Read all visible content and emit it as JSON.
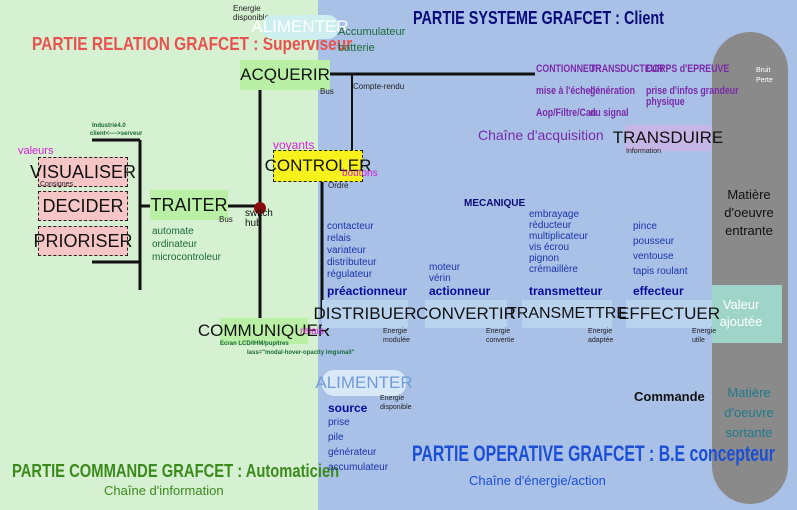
{
  "header": {
    "systeme_title": "PARTIE SYSTEME GRAFCET  : Client",
    "relation_title": "PARTIE RELATION  GRAFCET  : Superviseur",
    "commande_title": "PARTIE COMMANDE GRAFCET  : Automaticien",
    "operative_title": "PARTIE OPERATIVE GRAFCET   : B.E concepteur"
  },
  "top": {
    "energie_disponible": "Energie\ndisponible",
    "alimenter_top": "ALIMENTER",
    "accumulateur": "Accumulateur\nbatterie"
  },
  "boxes": {
    "acquerir": "ACQUERIR",
    "controler": "CONTROLER",
    "traiter": "TRAITER",
    "visualiser": "VISUALISER",
    "decider": "DECIDER",
    "prioriser": "PRIORISER",
    "communiquer": "COMMUNIQUER",
    "distribuer": "DISTRIBUER",
    "convertir": "CONVERTIR",
    "transmettre": "TRANSMETTRE",
    "effectuer": "EFFECTUER",
    "transduire": "TRANSDUIRE",
    "alimenter_bottom": "ALIMENTER"
  },
  "labels": {
    "bus_top": "Bus",
    "compte_rendu": "Compte-rendu",
    "voyants": "voyants",
    "ordre": "Ordre",
    "bus_left": "Bus",
    "switch_hub": "switch\nhub",
    "valeurs": "valeurs",
    "consignes": "Consignes",
    "industrie": "Industrie4.0",
    "client_serveur": "client<---->serveur",
    "automate": "automate\nordinateur\nmicrocontroleur",
    "ecran": "Ecran LCD/IHM/pupitres",
    "modal_text": "lass=\"modal-hover-opacity imgsmall\"",
    "relais_small": "relais",
    "boutons": "boutons",
    "information": "Information",
    "chaine_information": "Chaîne d'information",
    "chaine_acquisition": "Chaîne d'acquisition",
    "chaine_energie": "Chaîne d'énergie/action",
    "commande": "Commande"
  },
  "acquisition": {
    "col1": "CONTIONNEUR\n\nmise à l'échelle\n\nAop/Filtre/Can",
    "col2": "TRANSDUCTEUR\n\ngénération\n\ndu signal",
    "col3": "CORPS d'EPREUVE\n\nprise d'infos grandeur\nphysique"
  },
  "operative": {
    "mecanique": "MECANIQUE",
    "preactionneur_items": "contacteur\nrelais\nvariateur\ndistributeur\nrégulateur",
    "preactionneur": "préactionneur",
    "actionneur_items": "moteur\nvérin",
    "actionneur": "actionneur",
    "transmetteur_items": "embrayage\nréducteur\nmultiplicateur\nvis écrou\npignon\ncrémaillère",
    "transmetteur": "transmetteur",
    "effecteur_items": "pince\npousseur\nventouse\ntapis roulant",
    "effecteur": "effecteur",
    "energie_modulee": "Energie\nmodulée",
    "energie_convertie": "Energie\nconvertie",
    "energie_adaptee": "Energie\nadaptée",
    "energie_utile": "Energie\nutile",
    "energie_disponible_bottom": "Energie\ndisponible",
    "source": "source",
    "source_items": "prise\npile\ngénérateur\naccumulateur"
  },
  "matiere": {
    "bruit": "Bruit\nPerte",
    "entrante": "Matière\nd'oeuvre\nentrante",
    "valeur": "Valeur\najoutée",
    "sortante": "Matière\nd'oeuvre\nsortante"
  },
  "colors": {
    "left_bg": "#d6f0d2",
    "right_bg": "#a9c1e7",
    "relation_title": "#e8524f",
    "commande_title": "#3b8a1c",
    "systeme_title": "#0a0a78",
    "operative_title": "#1b4fd6",
    "purple": "#7a2aa8",
    "magenta": "#d61fd6"
  }
}
